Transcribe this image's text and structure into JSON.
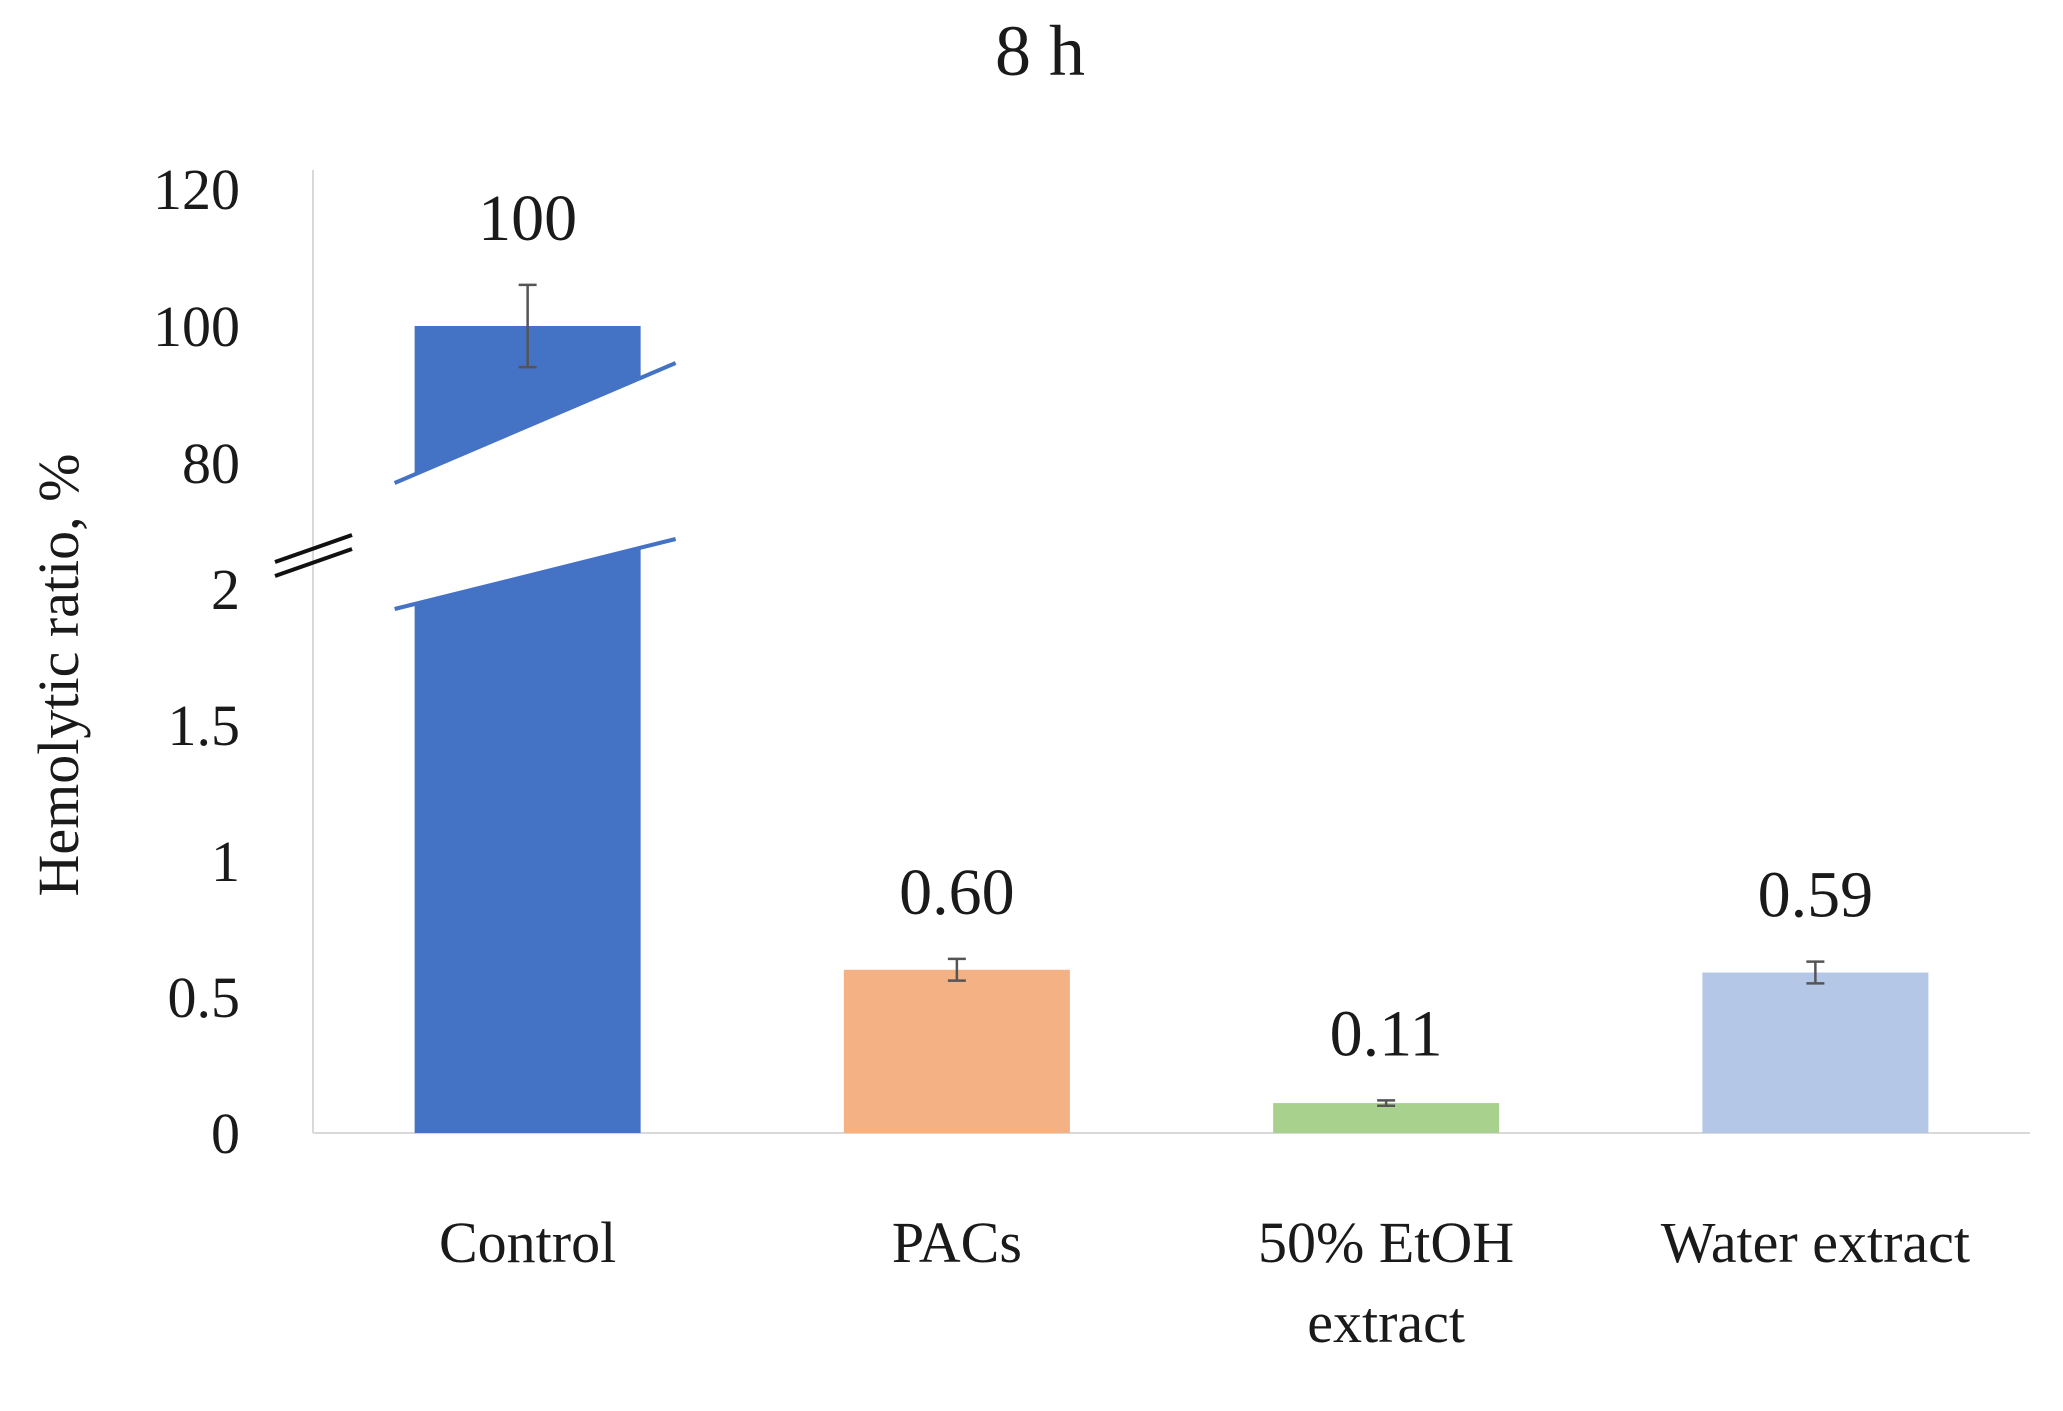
{
  "chart_data": {
    "type": "bar",
    "title": "8 h",
    "ylabel": "Hemolytic ratio, %",
    "xlabel": "",
    "categories": [
      {
        "lines": [
          "Control"
        ]
      },
      {
        "lines": [
          "PACs"
        ]
      },
      {
        "lines": [
          "50% EtOH",
          "extract"
        ]
      },
      {
        "lines": [
          "Water extract"
        ]
      }
    ],
    "values": [
      100,
      0.6,
      0.11,
      0.59
    ],
    "value_labels": [
      "100",
      "0.60",
      "0.11",
      "0.59"
    ],
    "errors": [
      6,
      0.04,
      0.01,
      0.04
    ],
    "colors": [
      "#4472C4",
      "#F4B183",
      "#A9D18E",
      "#B4C7E7"
    ],
    "axis_break": {
      "lower_max": 2,
      "upper_min": 80
    },
    "y_lower_ticks": [
      {
        "value": 0,
        "label": "0"
      },
      {
        "value": 0.5,
        "label": "0.5"
      },
      {
        "value": 1,
        "label": "1"
      },
      {
        "value": 1.5,
        "label": "1.5"
      },
      {
        "value": 2,
        "label": "2"
      }
    ],
    "y_upper_ticks": [
      {
        "value": 80,
        "label": "80"
      },
      {
        "value": 100,
        "label": "100"
      },
      {
        "value": 120,
        "label": "120"
      }
    ],
    "grid": false,
    "legend": "none"
  }
}
